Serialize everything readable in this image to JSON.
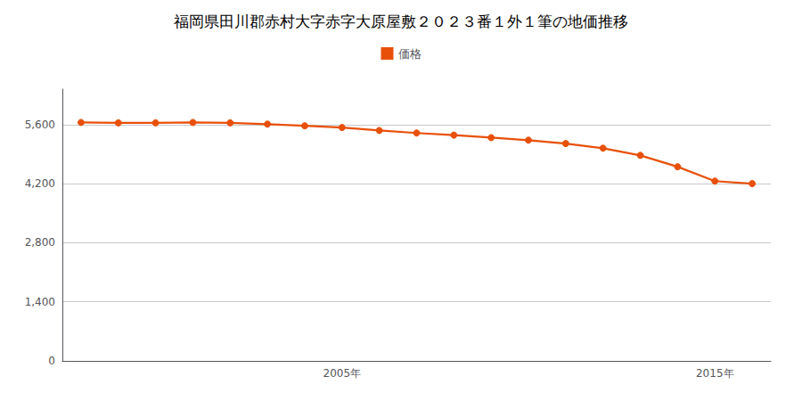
{
  "chart_data": {
    "type": "line",
    "title": "福岡県田川郡赤村大字赤字大原屋敷２０２３番１外１筆の地価推移",
    "x": [
      1998,
      1999,
      2000,
      2001,
      2002,
      2003,
      2004,
      2005,
      2006,
      2007,
      2008,
      2009,
      2010,
      2011,
      2012,
      2013,
      2014,
      2015,
      2016
    ],
    "series": [
      {
        "name": "価格",
        "color": "#e8500a",
        "values": [
          5650,
          5640,
          5640,
          5650,
          5640,
          5610,
          5570,
          5530,
          5460,
          5400,
          5350,
          5290,
          5230,
          5150,
          5040,
          4870,
          4600,
          4260,
          4200
        ]
      }
    ],
    "xlim": [
      1997.5,
      2016.5
    ],
    "xticks": [
      {
        "value": 2005,
        "label": "2005年"
      },
      {
        "value": 2015,
        "label": "2015年"
      }
    ],
    "ylim": [
      0,
      6440
    ],
    "yticks": [
      0,
      {
        "value": 1400,
        "label": "1,400"
      },
      {
        "value": 2800,
        "label": "2,800"
      },
      {
        "value": 4200,
        "label": "4,200"
      },
      {
        "value": 5600,
        "label": "5,600"
      }
    ],
    "grid": true,
    "legend": "top",
    "marker": "circle"
  }
}
